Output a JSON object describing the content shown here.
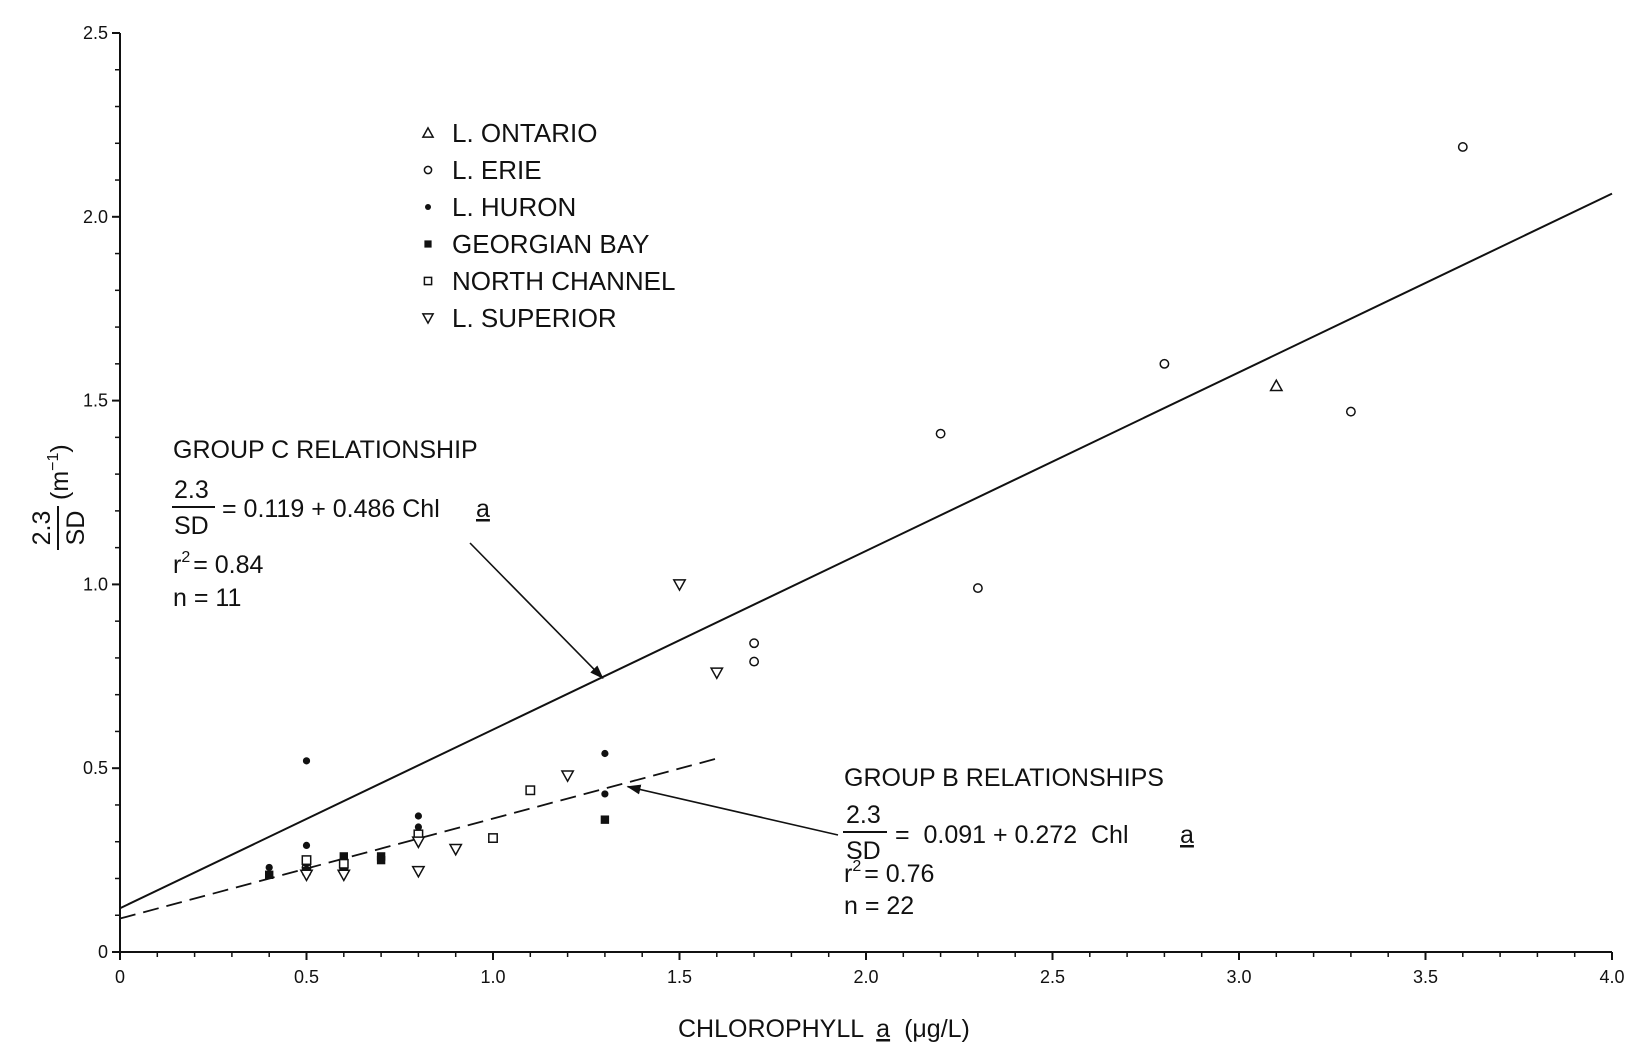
{
  "chart_data": {
    "type": "scatter",
    "xlabel": "CHLOROPHYLL",
    "xlabel_italic": "a",
    "xlabel_unit": "(μg/L)",
    "ylabel_num": "2.3",
    "ylabel_den": "SD",
    "ylabel_unit": "(m",
    "ylabel_unit_sup": "−1",
    "ylabel_unit_close": ")",
    "xlim": [
      0,
      4.0
    ],
    "ylim": [
      0,
      2.5
    ],
    "x_ticks": [
      "0",
      "0.5",
      "1.0",
      "1.5",
      "2.0",
      "2.5",
      "3.0",
      "3.5",
      "4.0"
    ],
    "y_ticks": [
      "0",
      "0.5",
      "1.0",
      "1.5",
      "2.0",
      "2.5"
    ],
    "grid": false,
    "legend_position": "top-left",
    "series": [
      {
        "name": "L. ONTARIO",
        "marker": "triangle-up-open",
        "points": [
          [
            3.1,
            1.54
          ]
        ]
      },
      {
        "name": "L. ERIE",
        "marker": "circle-open",
        "points": [
          [
            3.6,
            2.19
          ],
          [
            2.8,
            1.6
          ],
          [
            3.3,
            1.47
          ],
          [
            2.2,
            1.41
          ],
          [
            2.3,
            0.99
          ],
          [
            1.7,
            0.84
          ],
          [
            1.7,
            0.79
          ],
          [
            0.6,
            0.22
          ],
          [
            0.5,
            0.23
          ]
        ]
      },
      {
        "name": "L. HURON",
        "marker": "circle-filled",
        "points": [
          [
            0.5,
            0.52
          ],
          [
            0.5,
            0.29
          ],
          [
            0.6,
            0.26
          ],
          [
            0.8,
            0.37
          ],
          [
            0.8,
            0.34
          ],
          [
            1.3,
            0.54
          ],
          [
            1.3,
            0.43
          ],
          [
            0.4,
            0.23
          ],
          [
            0.6,
            0.23
          ],
          [
            0.5,
            0.24
          ]
        ]
      },
      {
        "name": "GEORGIAN BAY",
        "marker": "square-filled",
        "points": [
          [
            1.3,
            0.36
          ],
          [
            0.7,
            0.26
          ],
          [
            0.7,
            0.25
          ],
          [
            0.4,
            0.21
          ],
          [
            0.6,
            0.26
          ],
          [
            0.5,
            0.22
          ]
        ]
      },
      {
        "name": "NORTH CHANNEL",
        "marker": "square-open",
        "points": [
          [
            1.1,
            0.44
          ],
          [
            1.0,
            0.31
          ],
          [
            0.8,
            0.32
          ],
          [
            0.5,
            0.25
          ],
          [
            0.6,
            0.24
          ]
        ]
      },
      {
        "name": "L. SUPERIOR",
        "marker": "triangle-down-open",
        "points": [
          [
            1.5,
            1.0
          ],
          [
            1.6,
            0.76
          ],
          [
            1.2,
            0.48
          ],
          [
            0.9,
            0.28
          ],
          [
            0.8,
            0.3
          ],
          [
            0.8,
            0.22
          ],
          [
            0.5,
            0.21
          ],
          [
            0.6,
            0.21
          ]
        ]
      }
    ],
    "lines": [
      {
        "id": "group-c",
        "style": "solid",
        "intercept": 0.119,
        "slope": 0.486,
        "x_range": [
          0,
          4.0
        ]
      },
      {
        "id": "group-b",
        "style": "dashed",
        "intercept": 0.091,
        "slope": 0.272,
        "x_range": [
          0,
          1.6
        ]
      }
    ],
    "annotations": {
      "group_c": {
        "title": "GROUP C RELATIONSHIP",
        "frac_num": "2.3",
        "frac_den": "SD",
        "equation": "= 0.119 + 0.486 Chl",
        "chl_sub": "a",
        "r2_prefix": "r",
        "r2_sup": "2",
        "r2_value": "= 0.84",
        "n": "n = 11",
        "arrow_to": [
          1.3,
          0.75
        ]
      },
      "group_b": {
        "title": "GROUP B RELATIONSHIPS",
        "frac_num": "2.3",
        "frac_den": "SD",
        "equation": "=  0.091 + 0.272  Chl",
        "chl_sub": "a",
        "r2_prefix": "r",
        "r2_sup": "2",
        "r2_value": "= 0.76",
        "n": "n = 22",
        "arrow_to": [
          1.35,
          0.45
        ]
      }
    }
  }
}
